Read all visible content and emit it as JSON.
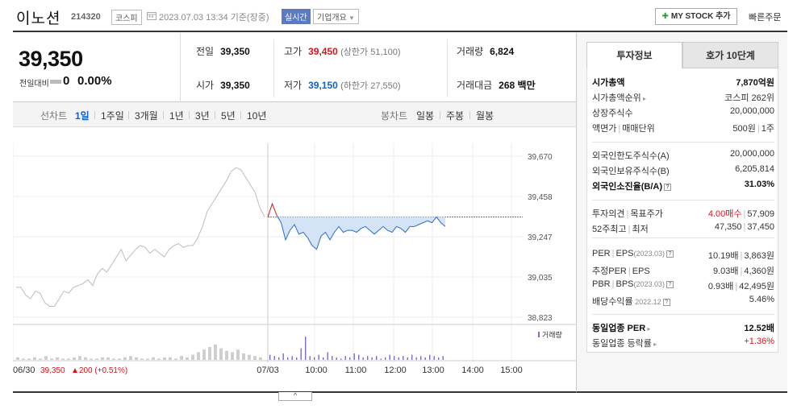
{
  "header": {
    "name": "이노션",
    "code": "214320",
    "market": "코스피",
    "date": "2023.07.03 13:34 기준(장중)",
    "realtime": "실시간",
    "corp_info": "기업개요",
    "mystock": "MY STOCK 추가",
    "quick_order": "빠른주문"
  },
  "price": {
    "current": "39,350",
    "change_label": "전일대비",
    "change": "0",
    "change_pct": "0.00%"
  },
  "stats": {
    "prev_label": "전일",
    "prev": "39,350",
    "high_label": "고가",
    "high": "39,450",
    "upper_limit": "(상한가 51,100)",
    "volume_label": "거래량",
    "volume": "6,824",
    "open_label": "시가",
    "open": "39,350",
    "low_label": "저가",
    "low": "39,150",
    "lower_limit": "(하한가 27,550)",
    "value_label": "거래대금",
    "value": "268 백만"
  },
  "periods": {
    "line_label": "선차트",
    "items": [
      "1일",
      "1주일",
      "3개월",
      "1년",
      "3년",
      "5년",
      "10년"
    ],
    "candle_label": "봉차트",
    "candles": [
      "일봉",
      "주봉",
      "월봉"
    ]
  },
  "chart_data": {
    "type": "line",
    "yticks": [
      "39,670",
      "39,458",
      "39,247",
      "39,035",
      "38,823"
    ],
    "xticks": [
      "06/30",
      "07/03",
      "10:00",
      "11:00",
      "12:00",
      "13:00",
      "14:00",
      "15:00"
    ],
    "ylim": [
      38823,
      39670
    ],
    "prev_close": 39350,
    "volume_legend": "거래량",
    "prev_day_summary": "39,350",
    "prev_day_change": "▲200 (+0.51%)",
    "prev_day_series": [
      38980,
      38980,
      38940,
      38920,
      38960,
      38950,
      38900,
      38880,
      38880,
      38920,
      38960,
      38950,
      38980,
      38990,
      39000,
      39020,
      38990,
      39050,
      39080,
      39060,
      39100,
      39140,
      39180,
      39120,
      39150,
      39180,
      39200,
      39190,
      39160,
      39180,
      39160,
      39140,
      39180,
      39200,
      39210,
      39190,
      39200,
      39200,
      39240,
      39300,
      39380,
      39420,
      39460,
      39500,
      39540,
      39590,
      39610,
      39600,
      39560,
      39520,
      39480,
      39400,
      39350
    ],
    "today_series": [
      39350,
      39420,
      39360,
      39320,
      39230,
      39280,
      39310,
      39260,
      39270,
      39240,
      39200,
      39180,
      39250,
      39270,
      39230,
      39270,
      39300,
      39270,
      39280,
      39280,
      39270,
      39290,
      39300,
      39280,
      39260,
      39280,
      39300,
      39280,
      39270,
      39300,
      39290,
      39270,
      39300,
      39300,
      39310,
      39320,
      39330,
      39320,
      39350,
      39320,
      39300
    ],
    "prev_day_volume": [
      2,
      1,
      1,
      2,
      1,
      3,
      1,
      2,
      1,
      1,
      2,
      3,
      2,
      1,
      1,
      2,
      2,
      1,
      1,
      2,
      3,
      2,
      1,
      1,
      2,
      1,
      2,
      2,
      1,
      3,
      2,
      4,
      6,
      8,
      10,
      12,
      9,
      7,
      6,
      8,
      5,
      4,
      3,
      2
    ],
    "today_volume": [
      4,
      3,
      2,
      5,
      2,
      3,
      2,
      9,
      18,
      3,
      2,
      4,
      2,
      6,
      3,
      2,
      1,
      3,
      2,
      5,
      4,
      2,
      3,
      2,
      3,
      1,
      2,
      4,
      3,
      2,
      3,
      2,
      4,
      2,
      3,
      2,
      4,
      3,
      2,
      3
    ]
  },
  "side": {
    "tabs": [
      "투자정보",
      "호가 10단계"
    ],
    "rows": [
      {
        "k": "시가총액",
        "v": "7,870억원"
      },
      {
        "k": "시가총액순위",
        "v": "코스피 262위"
      },
      {
        "k": "상장주식수",
        "v": "20,000,000"
      },
      {
        "k": "액면가",
        "k2": "매매단위",
        "v": "500원",
        "v2": "1주"
      },
      {
        "k": "외국인한도주식수(A)",
        "v": "20,000,000"
      },
      {
        "k": "외국인보유주식수(B)",
        "v": "6,205,814"
      },
      {
        "k": "외국인소진율(B/A)",
        "v": "31.03%"
      },
      {
        "k": "투자의견",
        "k2": "목표주가",
        "v": "4.00매수",
        "v2": "57,909"
      },
      {
        "k": "52주최고",
        "k2": "최저",
        "v": "47,350",
        "v2": "37,450"
      },
      {
        "k": "PER",
        "k2": "EPS",
        "k3": "(2023.03)",
        "v": "10.19배",
        "v2": "3,863원"
      },
      {
        "k": "추정PER",
        "k2": "EPS",
        "v": "9.03배",
        "v2": "4,360원"
      },
      {
        "k": "PBR",
        "k2": "BPS",
        "k3": "(2023.03)",
        "v": "0.93배",
        "v2": "42,495원"
      },
      {
        "k": "배당수익률",
        "k3": "2022.12",
        "v": "5.46%"
      },
      {
        "k": "동일업종 PER",
        "v": "12.52배"
      },
      {
        "k": "동일업종 등락률",
        "v": "+1.36%"
      }
    ]
  }
}
